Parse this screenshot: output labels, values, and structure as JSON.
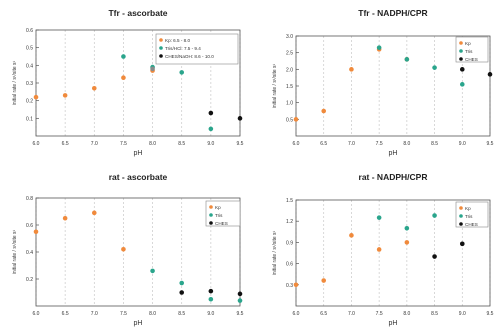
{
  "colors": {
    "series_orange": "#f08a3c",
    "series_teal": "#2aa58c",
    "series_black": "#111111",
    "series_gray": "#8a8a8a",
    "grid": "#c8c8c8",
    "axis": "#555555"
  },
  "chart_data": [
    {
      "type": "scatter",
      "title": "Tfr - ascorbate",
      "xlabel": "pH",
      "ylabel": "initial rate / s¹/site s¹",
      "xlim": [
        6.0,
        9.5
      ],
      "ylim": [
        0,
        0.6
      ],
      "xticks": [
        "6.0",
        "6.5",
        "7.0",
        "7.5",
        "8.0",
        "8.5",
        "9.0",
        "9.5"
      ],
      "yticks": [
        "0.1",
        "0.2",
        "0.3",
        "0.4",
        "0.5",
        "0.6"
      ],
      "legend_position": "top-right",
      "series": [
        {
          "name": "Kp: 6.5 - 8.0",
          "color": "#f08a3c",
          "x": [
            6.0,
            6.5,
            7.0,
            7.5,
            8.0
          ],
          "y": [
            0.22,
            0.23,
            0.27,
            0.33,
            0.37
          ]
        },
        {
          "name": "Tris/HCl: 7.5 - 9.4",
          "color": "#2aa58c",
          "x": [
            7.5,
            8.0,
            8.5,
            9.0
          ],
          "y": [
            0.45,
            0.39,
            0.36,
            0.04
          ]
        },
        {
          "name": "CHES/NaOH: 8.6 - 10.0",
          "color": "#111111",
          "x": [
            9.0,
            9.5
          ],
          "y": [
            0.13,
            0.1
          ]
        },
        {
          "name": "",
          "color": "#8a8a8a",
          "x": [
            8.0
          ],
          "y": [
            0.38
          ]
        }
      ]
    },
    {
      "type": "scatter",
      "title": "Tfr - NADPH/CPR",
      "xlabel": "pH",
      "ylabel": "initial rate / s¹/site s¹",
      "xlim": [
        6.0,
        9.5
      ],
      "ylim": [
        0,
        3.0
      ],
      "xticks": [
        "6.0",
        "6.5",
        "7.0",
        "7.5",
        "8.0",
        "8.5",
        "9.0",
        "9.5"
      ],
      "yticks": [
        "0.5",
        "1.0",
        "1.5",
        "2.0",
        "2.5",
        "3.0"
      ],
      "legend_position": "top-right",
      "series": [
        {
          "name": "Kp",
          "color": "#f08a3c",
          "x": [
            6.0,
            6.5,
            7.0,
            7.5,
            8.0
          ],
          "y": [
            0.5,
            0.75,
            2.0,
            2.6,
            2.3
          ]
        },
        {
          "name": "Tris",
          "color": "#2aa58c",
          "x": [
            7.5,
            8.0,
            8.5,
            9.0
          ],
          "y": [
            2.65,
            2.3,
            2.05,
            1.55
          ]
        },
        {
          "name": "CHES",
          "color": "#111111",
          "x": [
            9.0,
            9.5
          ],
          "y": [
            2.0,
            1.85
          ]
        }
      ]
    },
    {
      "type": "scatter",
      "title": "rat - ascorbate",
      "xlabel": "pH",
      "ylabel": "initial rate / s¹/site s¹",
      "xlim": [
        6.0,
        9.5
      ],
      "ylim": [
        0,
        0.8
      ],
      "xticks": [
        "6.0",
        "6.5",
        "7.0",
        "7.5",
        "8.0",
        "8.5",
        "9.0",
        "9.5"
      ],
      "yticks": [
        "0.2",
        "0.4",
        "0.6",
        "0.8"
      ],
      "legend_position": "top-right",
      "series": [
        {
          "name": "Kp",
          "color": "#f08a3c",
          "x": [
            6.0,
            6.5,
            7.0,
            7.5
          ],
          "y": [
            0.55,
            0.65,
            0.69,
            0.42
          ]
        },
        {
          "name": "Tris",
          "color": "#2aa58c",
          "x": [
            8.0,
            8.5,
            9.0,
            9.5
          ],
          "y": [
            0.26,
            0.17,
            0.05,
            0.04
          ]
        },
        {
          "name": "CHES",
          "color": "#111111",
          "x": [
            8.5,
            9.0,
            9.5
          ],
          "y": [
            0.1,
            0.11,
            0.09
          ]
        }
      ]
    },
    {
      "type": "scatter",
      "title": "rat - NADPH/CPR",
      "xlabel": "pH",
      "ylabel": "initial rate / s¹/site s¹",
      "xlim": [
        6.0,
        9.5
      ],
      "ylim": [
        0,
        1.5
      ],
      "xticks": [
        "6.0",
        "6.5",
        "7.0",
        "7.5",
        "8.0",
        "8.5",
        "9.0",
        "9.5"
      ],
      "yticks": [
        "0.3",
        "0.6",
        "0.9",
        "1.2",
        "1.5"
      ],
      "legend_position": "top-right",
      "series": [
        {
          "name": "Kp",
          "color": "#f08a3c",
          "x": [
            6.0,
            6.5,
            7.0,
            7.5,
            8.0
          ],
          "y": [
            0.3,
            0.36,
            1.0,
            0.8,
            0.9
          ]
        },
        {
          "name": "Tris",
          "color": "#2aa58c",
          "x": [
            7.5,
            8.0,
            8.5
          ],
          "y": [
            1.25,
            1.1,
            1.28
          ]
        },
        {
          "name": "CHES",
          "color": "#111111",
          "x": [
            8.5,
            9.0
          ],
          "y": [
            0.7,
            0.88
          ]
        }
      ]
    }
  ]
}
